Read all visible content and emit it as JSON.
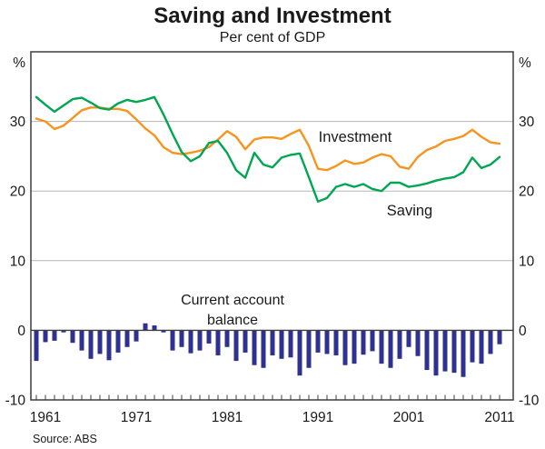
{
  "title": "Saving and Investment",
  "subtitle": "Per cent of GDP",
  "source": "Source: ABS",
  "axis": {
    "unit_left": "%",
    "unit_right": "%"
  },
  "annotations": {
    "investment_label": "Investment",
    "saving_label": "Saving",
    "cab_label_line1": "Current account",
    "cab_label_line2": "balance"
  },
  "colors": {
    "investment": "#F7941E",
    "saving": "#00A651",
    "current_account": "#2E3192",
    "cab_text": "#2B2E8E",
    "grid": "#b5b5b5",
    "frame": "#3d3d3d",
    "zero_line": "#3d3d3d",
    "text": "#1a1a1a"
  },
  "chart_data": {
    "type": "line",
    "title": "Saving and Investment",
    "subtitle": "Per cent of GDP",
    "xlabel": "",
    "ylabel": "%",
    "xlim": [
      1959.4,
      2012.5
    ],
    "ylim": [
      -10,
      40
    ],
    "grid": "horizontal gridlines at 10, 20, 30; solid line at 0",
    "legend_position": "inline text labels on chart",
    "y_ticks": [
      -10,
      0,
      10,
      20,
      30
    ],
    "x_tick_labels": [
      1961,
      1971,
      1981,
      1991,
      2001,
      2011
    ],
    "minor_x_ticks_every_year": true,
    "x": [
      1960,
      1961,
      1962,
      1963,
      1964,
      1965,
      1966,
      1967,
      1968,
      1969,
      1970,
      1971,
      1972,
      1973,
      1974,
      1975,
      1976,
      1977,
      1978,
      1979,
      1980,
      1981,
      1982,
      1983,
      1984,
      1985,
      1986,
      1987,
      1988,
      1989,
      1990,
      1991,
      1992,
      1993,
      1994,
      1995,
      1996,
      1997,
      1998,
      1999,
      2000,
      2001,
      2002,
      2003,
      2004,
      2005,
      2006,
      2007,
      2008,
      2009,
      2010,
      2011
    ],
    "series": [
      {
        "name": "Investment",
        "type": "line",
        "color": "#F7941E",
        "values": [
          30.4,
          30.0,
          28.9,
          29.4,
          30.5,
          31.6,
          32.0,
          32.0,
          31.8,
          31.8,
          31.5,
          30.3,
          29.0,
          28.0,
          26.3,
          25.5,
          25.3,
          25.5,
          25.8,
          26.3,
          27.4,
          28.6,
          27.8,
          26.0,
          27.4,
          27.7,
          27.7,
          27.5,
          28.2,
          28.8,
          26.5,
          23.2,
          23.0,
          23.6,
          24.4,
          23.9,
          24.1,
          24.8,
          25.3,
          25.0,
          23.5,
          23.2,
          24.9,
          25.9,
          26.4,
          27.2,
          27.5,
          27.9,
          28.8,
          27.8,
          27.0,
          26.8
        ]
      },
      {
        "name": "Saving",
        "type": "line",
        "color": "#00A651",
        "values": [
          33.5,
          32.4,
          31.4,
          32.3,
          33.2,
          33.4,
          32.7,
          31.9,
          31.7,
          32.6,
          33.1,
          32.8,
          33.1,
          33.5,
          31.0,
          28.2,
          25.6,
          24.3,
          25.0,
          26.9,
          27.2,
          25.5,
          23.0,
          21.9,
          25.5,
          23.8,
          23.4,
          24.8,
          25.2,
          25.4,
          22.0,
          18.5,
          19.0,
          20.6,
          21.0,
          20.6,
          21.0,
          20.3,
          20.0,
          21.2,
          21.2,
          20.6,
          20.8,
          21.1,
          21.5,
          21.8,
          22.0,
          22.7,
          24.8,
          23.3,
          23.8,
          24.9
        ]
      },
      {
        "name": "Current account balance",
        "type": "bar",
        "color": "#2E3192",
        "values": [
          -4.4,
          -1.7,
          -1.5,
          -0.3,
          -1.8,
          -2.9,
          -4.1,
          -3.4,
          -4.3,
          -3.2,
          -2.4,
          -1.6,
          1.0,
          0.7,
          -0.3,
          -2.9,
          -2.4,
          -3.3,
          -2.9,
          -1.9,
          -3.6,
          -2.4,
          -4.4,
          -3.2,
          -5.0,
          -5.4,
          -3.6,
          -4.1,
          -3.9,
          -6.5,
          -5.4,
          -3.2,
          -3.4,
          -3.6,
          -5.0,
          -4.8,
          -3.5,
          -3.0,
          -4.8,
          -5.4,
          -4.1,
          -2.4,
          -3.7,
          -5.7,
          -6.5,
          -5.9,
          -6.1,
          -6.7,
          -4.6,
          -4.8,
          -3.4,
          -2.0
        ]
      }
    ]
  }
}
